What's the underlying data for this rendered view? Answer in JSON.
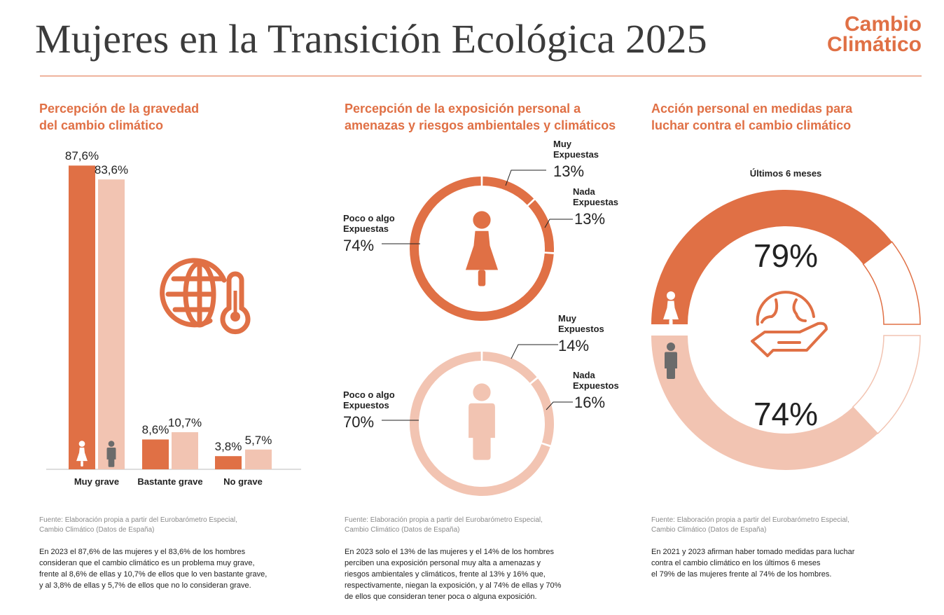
{
  "header": {
    "title": "Mujeres en la Transición Ecológica 2025",
    "logo_line1": "Cambio",
    "logo_line2": "Climático"
  },
  "colors": {
    "women": "#e07045",
    "men": "#f2c4b2",
    "icon_men": "#6b6b6b",
    "accent": "#e07045"
  },
  "chart_data": [
    {
      "type": "bar",
      "title": "Percepción de la gravedad del cambio climático",
      "categories": [
        "Muy grave",
        "Bastante grave",
        "No grave"
      ],
      "series": [
        {
          "name": "Mujeres",
          "values": [
            87.6,
            8.6,
            3.8
          ],
          "labels": [
            "87,6%",
            "8,6%",
            "3,8%"
          ]
        },
        {
          "name": "Hombres",
          "values": [
            83.6,
            10.7,
            5.7
          ],
          "labels": [
            "83,6%",
            "10,7%",
            "5,7%"
          ]
        }
      ],
      "ylim": [
        0,
        100
      ],
      "grid": false
    },
    {
      "type": "pie",
      "title": "Percepción de la exposición personal a amenazas y riesgos ambientales y climáticos",
      "series": [
        {
          "name": "Mujeres",
          "slices": [
            {
              "label": "Muy Expuestas",
              "value": 13,
              "text": "13%"
            },
            {
              "label": "Nada Expuestas",
              "value": 13,
              "text": "13%"
            },
            {
              "label": "Poco o algo Expuestas",
              "value": 74,
              "text": "74%"
            }
          ]
        },
        {
          "name": "Hombres",
          "slices": [
            {
              "label": "Muy Expuestos",
              "value": 14,
              "text": "14%"
            },
            {
              "label": "Nada Expuestos",
              "value": 16,
              "text": "16%"
            },
            {
              "label": "Poco o algo Expuestos",
              "value": 70,
              "text": "70%"
            }
          ]
        }
      ]
    },
    {
      "type": "pie",
      "title": "Acción personal en medidas para luchar contra el cambio climático",
      "subtitle": "Últimos 6 meses",
      "series": [
        {
          "name": "Mujeres",
          "value": 79,
          "text": "79%"
        },
        {
          "name": "Hombres",
          "value": 74,
          "text": "74%"
        }
      ]
    }
  ],
  "columns": [
    {
      "heading1": "Percepción de la gravedad",
      "heading2": "del cambio climático",
      "source1": "Fuente: Elaboración propia a partir del Eurobarómetro Especial,",
      "source2": "Cambio Climático (Datos de España)",
      "text": [
        "En 2023 el 87,6% de las mujeres y el 83,6% de los hombres",
        "consideran que el cambio climático es un problema muy grave,",
        "frente al 8,6% de ellas y 10,7% de ellos que lo ven bastante grave,",
        "y al 3,8% de ellas y 5,7% de ellos que no lo consideran grave."
      ]
    },
    {
      "heading1": "Percepción de la exposición personal a",
      "heading2": "amenazas y riesgos ambientales y climáticos",
      "source1": "Fuente: Elaboración propia a partir del Eurobarómetro Especial,",
      "source2": "Cambio Climático (Datos de España)",
      "text": [
        "En 2023 solo el 13% de las mujeres y el 14% de los hombres",
        "perciben una exposición personal muy alta a amenazas y",
        "riesgos ambientales y climáticos, frente al 13% y 16% que,",
        "respectivamente, niegan la exposición, y al 74% de ellas y 70%",
        "de ellos que consideran tener poca o alguna exposición."
      ]
    },
    {
      "heading1": "Acción personal en medidas para",
      "heading2": "luchar contra el cambio climático",
      "source1": "Fuente: Elaboración propia a partir del Eurobarómetro Especial,",
      "source2": "Cambio Climático (Datos de España)",
      "text": [
        "En 2021 y 2023 afirman haber tomado medidas para luchar",
        "contra el cambio climático en los últimos 6 meses",
        "el 79% de las mujeres frente al 74% de los hombres."
      ]
    }
  ]
}
